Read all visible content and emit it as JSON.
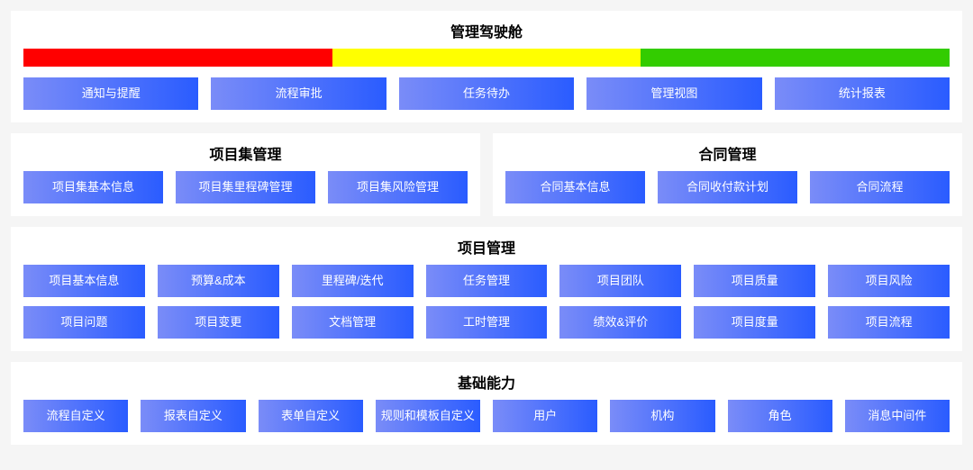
{
  "colors": {
    "button_gradient_from": "#7a8cf8",
    "button_gradient_to": "#2a5cff",
    "panel_bg": "#ffffff",
    "page_bg": "#f5f5f5",
    "title_color": "#000000",
    "button_text": "#ffffff"
  },
  "dashboard": {
    "title": "管理驾驶舱",
    "status_bar": {
      "segments": [
        {
          "color": "#ff0000",
          "weight": 1
        },
        {
          "color": "#ffff00",
          "weight": 1
        },
        {
          "color": "#33cc00",
          "weight": 1
        }
      ]
    },
    "buttons": [
      "通知与提醒",
      "流程审批",
      "任务待办",
      "管理视图",
      "统计报表"
    ]
  },
  "program_mgmt": {
    "title": "项目集管理",
    "buttons": [
      "项目集基本信息",
      "项目集里程碑管理",
      "项目集风险管理"
    ]
  },
  "contract_mgmt": {
    "title": "合同管理",
    "buttons": [
      "合同基本信息",
      "合同收付款计划",
      "合同流程"
    ]
  },
  "project_mgmt": {
    "title": "项目管理",
    "row1": [
      "项目基本信息",
      "预算&成本",
      "里程碑/迭代",
      "任务管理",
      "项目团队",
      "项目质量",
      "项目风险"
    ],
    "row2": [
      "项目问题",
      "项目变更",
      "文档管理",
      "工时管理",
      "绩效&评价",
      "项目度量",
      "项目流程"
    ]
  },
  "foundation": {
    "title": "基础能力",
    "buttons": [
      "流程自定义",
      "报表自定义",
      "表单自定义",
      "规则和模板自定义",
      "用户",
      "机构",
      "角色",
      "消息中间件"
    ]
  }
}
